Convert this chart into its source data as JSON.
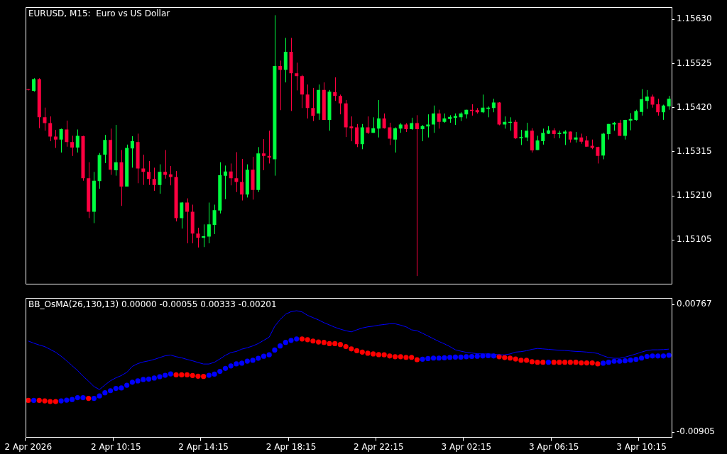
{
  "chart_data": [
    {
      "type": "candlestick",
      "title": "EURUSD, M15:  Euro vs US Dollar",
      "tick_labels": "y",
      "categories": [
        null,
        null,
        null,
        null,
        null,
        null,
        null,
        null,
        null,
        null,
        null,
        null,
        null,
        null,
        null,
        null,
        null,
        null,
        null,
        null,
        null,
        null,
        null,
        null,
        null,
        null,
        null,
        null,
        null,
        null,
        null,
        null,
        null,
        null,
        null,
        null,
        null,
        null,
        null,
        null,
        null,
        null,
        null,
        null,
        null,
        null,
        null,
        null,
        null,
        null,
        null,
        null,
        null,
        null,
        null,
        null,
        null,
        null,
        null,
        null,
        null,
        null,
        null,
        null,
        null,
        null,
        null,
        null,
        null,
        null,
        null,
        null,
        null,
        null,
        null,
        null,
        null,
        null,
        null,
        null,
        null,
        null,
        null,
        null,
        null,
        null,
        null,
        null,
        null,
        null,
        null,
        null,
        null,
        null,
        null,
        null,
        null,
        null,
        null,
        null,
        null,
        null,
        null,
        null,
        null,
        null,
        null,
        null,
        null,
        null,
        null,
        null,
        null,
        null,
        null,
        null,
        null,
        null
      ],
      "ylim": [
        1.15001,
        1.15659
      ],
      "yticks": [
        {
          "value": 1.15105,
          "label": "1.15105"
        },
        {
          "value": 1.1521,
          "label": "1.15210"
        },
        {
          "value": 1.15315,
          "label": "1.15315"
        },
        {
          "value": 1.1542,
          "label": "1.15420"
        },
        {
          "value": 1.15525,
          "label": "1.15525"
        },
        {
          "value": 1.1563,
          "label": "1.15630"
        }
      ],
      "ohlc": [
        [
          1.15463,
          1.15464,
          1.15461,
          1.15462
        ],
        [
          1.1546,
          1.1549,
          1.15458,
          1.15488
        ],
        [
          1.15488,
          1.1549,
          1.15371,
          1.15397
        ],
        [
          1.15397,
          1.1542,
          1.15365,
          1.15383
        ],
        [
          1.15383,
          1.15399,
          1.1534,
          1.15351
        ],
        [
          1.15351,
          1.15367,
          1.15324,
          1.15344
        ],
        [
          1.15344,
          1.1537,
          1.15313,
          1.15369
        ],
        [
          1.15368,
          1.15389,
          1.15327,
          1.15338
        ],
        [
          1.15338,
          1.15353,
          1.15305,
          1.15325
        ],
        [
          1.15325,
          1.15368,
          1.15313,
          1.15353
        ],
        [
          1.15352,
          1.15353,
          1.15246,
          1.15252
        ],
        [
          1.15252,
          1.1529,
          1.15157,
          1.15172
        ],
        [
          1.15172,
          1.15267,
          1.15145,
          1.15246
        ],
        [
          1.15245,
          1.15312,
          1.15227,
          1.15307
        ],
        [
          1.15308,
          1.15355,
          1.15288,
          1.15343
        ],
        [
          1.15343,
          1.1537,
          1.1526,
          1.15272
        ],
        [
          1.15271,
          1.15379,
          1.15258,
          1.1529
        ],
        [
          1.1529,
          1.15319,
          1.15186,
          1.15232
        ],
        [
          1.15232,
          1.15332,
          1.15232,
          1.15324
        ],
        [
          1.15323,
          1.15352,
          1.15277,
          1.1534
        ],
        [
          1.15338,
          1.15358,
          1.1524,
          1.15275
        ],
        [
          1.15275,
          1.15308,
          1.15236,
          1.15267
        ],
        [
          1.15267,
          1.15293,
          1.15236,
          1.1525
        ],
        [
          1.1525,
          1.15277,
          1.15222,
          1.15236
        ],
        [
          1.15236,
          1.15285,
          1.15215,
          1.15267
        ],
        [
          1.15267,
          1.15319,
          1.15251,
          1.1526
        ],
        [
          1.15261,
          1.15281,
          1.15235,
          1.15255
        ],
        [
          1.15255,
          1.15269,
          1.15149,
          1.15157
        ],
        [
          1.15157,
          1.15195,
          1.15132,
          1.15194
        ],
        [
          1.15194,
          1.15204,
          1.15097,
          1.15172
        ],
        [
          1.15172,
          1.15189,
          1.15097,
          1.1512
        ],
        [
          1.1512,
          1.15134,
          1.15087,
          1.1511
        ],
        [
          1.1511,
          1.15142,
          1.15088,
          1.15114
        ],
        [
          1.15113,
          1.15194,
          1.15097,
          1.15142
        ],
        [
          1.15141,
          1.15189,
          1.15119,
          1.15176
        ],
        [
          1.15175,
          1.1529,
          1.15168,
          1.15259
        ],
        [
          1.15258,
          1.15282,
          1.15202,
          1.15268
        ],
        [
          1.15268,
          1.15287,
          1.15235,
          1.15252
        ],
        [
          1.15252,
          1.15314,
          1.15219,
          1.15243
        ],
        [
          1.15243,
          1.15298,
          1.15199,
          1.15213
        ],
        [
          1.15213,
          1.15285,
          1.15206,
          1.15272
        ],
        [
          1.15272,
          1.15303,
          1.15201,
          1.15224
        ],
        [
          1.15224,
          1.15326,
          1.15219,
          1.15311
        ],
        [
          1.15311,
          1.15345,
          1.15271,
          1.15305
        ],
        [
          1.15305,
          1.15365,
          1.15287,
          1.15301
        ],
        [
          1.15297,
          1.1564,
          1.15258,
          1.15519
        ],
        [
          1.15519,
          1.15532,
          1.15414,
          1.1551
        ],
        [
          1.1551,
          1.15586,
          1.1548,
          1.15553
        ],
        [
          1.15553,
          1.15586,
          1.15412,
          1.15502
        ],
        [
          1.15502,
          1.15527,
          1.15461,
          1.15495
        ],
        [
          1.15495,
          1.15498,
          1.15419,
          1.15451
        ],
        [
          1.15451,
          1.15475,
          1.15394,
          1.15419
        ],
        [
          1.15419,
          1.15467,
          1.15388,
          1.154
        ],
        [
          1.15406,
          1.15475,
          1.15391,
          1.15462
        ],
        [
          1.15462,
          1.1548,
          1.15391,
          1.15391
        ],
        [
          1.15391,
          1.15462,
          1.15365,
          1.15458
        ],
        [
          1.15457,
          1.15492,
          1.15436,
          1.15448
        ],
        [
          1.15448,
          1.15451,
          1.15404,
          1.1543
        ],
        [
          1.1543,
          1.15438,
          1.1535,
          1.15373
        ],
        [
          1.15375,
          1.15399,
          1.1534,
          1.15371
        ],
        [
          1.15373,
          1.15381,
          1.15326,
          1.15333
        ],
        [
          1.15333,
          1.15381,
          1.15321,
          1.15373
        ],
        [
          1.15373,
          1.15399,
          1.15357,
          1.1536
        ],
        [
          1.1536,
          1.15397,
          1.1536,
          1.15371
        ],
        [
          1.1537,
          1.15438,
          1.15349,
          1.15394
        ],
        [
          1.15394,
          1.15406,
          1.1537,
          1.15371
        ],
        [
          1.15373,
          1.15384,
          1.15331,
          1.15346
        ],
        [
          1.15344,
          1.15373,
          1.15313,
          1.15371
        ],
        [
          1.1537,
          1.15383,
          1.1536,
          1.1538
        ],
        [
          1.1538,
          1.15383,
          1.15362,
          1.15369
        ],
        [
          1.15369,
          1.15396,
          1.15367,
          1.15383
        ],
        [
          1.15383,
          1.15402,
          1.15019,
          1.15369
        ],
        [
          1.15369,
          1.15379,
          1.1534,
          1.15376
        ],
        [
          1.15375,
          1.15404,
          1.15349,
          1.1538
        ],
        [
          1.1538,
          1.15425,
          1.1536,
          1.15406
        ],
        [
          1.15406,
          1.15415,
          1.1537,
          1.15386
        ],
        [
          1.15386,
          1.15406,
          1.15384,
          1.15394
        ],
        [
          1.15393,
          1.15402,
          1.15384,
          1.15398
        ],
        [
          1.15396,
          1.15406,
          1.15379,
          1.154
        ],
        [
          1.15397,
          1.15409,
          1.15388,
          1.15406
        ],
        [
          1.15404,
          1.15415,
          1.15394,
          1.15415
        ],
        [
          1.15415,
          1.15428,
          1.15401,
          1.15412
        ],
        [
          1.15414,
          1.15419,
          1.15406,
          1.15409
        ],
        [
          1.15409,
          1.15451,
          1.15407,
          1.1542
        ],
        [
          1.15417,
          1.15423,
          1.15397,
          1.1542
        ],
        [
          1.15419,
          1.15441,
          1.15409,
          1.15432
        ],
        [
          1.15432,
          1.15433,
          1.15378,
          1.1538
        ],
        [
          1.1538,
          1.15399,
          1.1537,
          1.15386
        ],
        [
          1.15384,
          1.15397,
          1.15365,
          1.15386
        ],
        [
          1.15386,
          1.15391,
          1.15345,
          1.15347
        ],
        [
          1.15347,
          1.15367,
          1.15331,
          1.1535
        ],
        [
          1.15349,
          1.15384,
          1.1534,
          1.15365
        ],
        [
          1.15365,
          1.15371,
          1.15313,
          1.15318
        ],
        [
          1.15319,
          1.15353,
          1.15319,
          1.15342
        ],
        [
          1.1534,
          1.1537,
          1.15332,
          1.1536
        ],
        [
          1.15358,
          1.15376,
          1.15357,
          1.15366
        ],
        [
          1.15366,
          1.15371,
          1.15347,
          1.15357
        ],
        [
          1.15357,
          1.15365,
          1.15347,
          1.1536
        ],
        [
          1.15358,
          1.15366,
          1.15331,
          1.15363
        ],
        [
          1.15363,
          1.15363,
          1.15337,
          1.15344
        ],
        [
          1.15344,
          1.15362,
          1.15337,
          1.15349
        ],
        [
          1.15349,
          1.15358,
          1.15334,
          1.15339
        ],
        [
          1.15342,
          1.15352,
          1.15327,
          1.15327
        ],
        [
          1.15329,
          1.15344,
          1.15321,
          1.15324
        ],
        [
          1.15326,
          1.15327,
          1.15287,
          1.15305
        ],
        [
          1.15306,
          1.1536,
          1.15297,
          1.15358
        ],
        [
          1.15357,
          1.15381,
          1.15344,
          1.15381
        ],
        [
          1.1538,
          1.15386,
          1.15365,
          1.15384
        ],
        [
          1.15384,
          1.15391,
          1.15353,
          1.15353
        ],
        [
          1.15353,
          1.15391,
          1.15344,
          1.15391
        ],
        [
          1.15389,
          1.15407,
          1.15366,
          1.15393
        ],
        [
          1.15391,
          1.15415,
          1.15389,
          1.15412
        ],
        [
          1.1541,
          1.15464,
          1.15401,
          1.1544
        ],
        [
          1.15436,
          1.15462,
          1.15417,
          1.15446
        ],
        [
          1.15446,
          1.15451,
          1.1542,
          1.15427
        ],
        [
          1.15428,
          1.15441,
          1.15401,
          1.15409
        ],
        [
          1.15409,
          1.15427,
          1.15391,
          1.15425
        ],
        [
          1.15423,
          1.15448,
          1.15415,
          1.15441
        ]
      ],
      "colors": [
        "#ff0040",
        "#00ff40",
        "#ff0040",
        "#ff0040",
        "#ff0040",
        "#ff0040",
        "#00ff40",
        "#ff0040",
        "#ff0040",
        "#00ff40",
        "#ff0040",
        "#ff0040",
        "#00ff40",
        "#00ff40",
        "#00ff40",
        "#ff0040",
        "#00ff40",
        "#ff0040",
        "#00ff40",
        "#00ff40",
        "#ff0040",
        "#ff0040",
        "#ff0040",
        "#ff0040",
        "#00ff40",
        "#ff0040",
        "#ff0040",
        "#ff0040",
        "#00ff40",
        "#ff0040",
        "#ff0040",
        "#ff0040",
        "#00ff40",
        "#00ff40",
        "#00ff40",
        "#00ff40",
        "#00ff40",
        "#ff0040",
        "#ff0040",
        "#ff0040",
        "#00ff40",
        "#ff0040",
        "#00ff40",
        "#ff0040",
        "#ff0040",
        "#00ff40",
        "#ff0040",
        "#00ff40",
        "#ff0040",
        "#ff0040",
        "#ff0040",
        "#ff0040",
        "#ff0040",
        "#00ff40",
        "#ff0040",
        "#00ff40",
        "#ff0040",
        "#ff0040",
        "#ff0040",
        "#ff0040",
        "#ff0040",
        "#00ff40",
        "#ff0040",
        "#00ff40",
        "#00ff40",
        "#ff0040",
        "#ff0040",
        "#00ff40",
        "#00ff40",
        "#ff0040",
        "#00ff40",
        "#ff0040",
        "#00ff40",
        "#00ff40",
        "#00ff40",
        "#ff0040",
        "#00ff40",
        "#00ff40",
        "#00ff40",
        "#00ff40",
        "#00ff40",
        "#ff0040",
        "#ff0040",
        "#00ff40",
        "#00ff40",
        "#00ff40",
        "#ff0040",
        "#00ff40",
        "#00ff40",
        "#ff0040",
        "#00ff40",
        "#00ff40",
        "#ff0040",
        "#00ff40",
        "#00ff40",
        "#00ff40",
        "#ff0040",
        "#00ff40",
        "#00ff40",
        "#ff0040",
        "#00ff40",
        "#ff0040",
        "#ff0040",
        "#ff0040",
        "#ff0040",
        "#00ff40",
        "#00ff40",
        "#00ff40",
        "#ff0040",
        "#00ff40",
        "#00ff40",
        "#00ff40",
        "#00ff40",
        "#00ff40",
        "#ff0040",
        "#ff0040",
        "#00ff40",
        "#00ff40"
      ]
    },
    {
      "type": "line",
      "title": "BB_OsMA(26,130,13) 0.00000 -0.00055 0.00333 -0.00201",
      "categories": [
        "2 Apr 2026",
        null,
        null,
        null,
        null,
        null,
        null,
        null,
        null,
        null,
        null,
        null,
        null,
        null,
        null,
        null,
        "2 Apr 10:15",
        null,
        null,
        null,
        null,
        null,
        null,
        null,
        null,
        null,
        null,
        null,
        null,
        null,
        null,
        null,
        "2 Apr 14:15",
        null,
        null,
        null,
        null,
        null,
        null,
        null,
        null,
        null,
        null,
        null,
        null,
        null,
        null,
        null,
        "2 Apr 18:15",
        null,
        null,
        null,
        null,
        null,
        null,
        null,
        null,
        null,
        null,
        null,
        null,
        null,
        null,
        null,
        "2 Apr 22:15",
        null,
        null,
        null,
        null,
        null,
        null,
        null,
        null,
        null,
        null,
        null,
        null,
        null,
        null,
        null,
        "3 Apr 02:15",
        null,
        null,
        null,
        null,
        null,
        null,
        null,
        null,
        null,
        null,
        null,
        null,
        null,
        null,
        null,
        "3 Apr 06:15",
        null,
        null,
        null,
        null,
        null,
        null,
        null,
        null,
        null,
        null,
        null,
        null,
        null,
        null,
        null,
        "3 Apr 10:15",
        null,
        null,
        null,
        null,
        null
      ],
      "ylim": [
        -0.00975,
        0.00851
      ],
      "yticks": [
        -0.00905,
        0.00767
      ],
      "series": [
        {
          "color": "#0000ff",
          "values": [
            0.00288,
            0.0026,
            0.00236,
            0.00215,
            0.00179,
            0.0014,
            0.00089,
            0.00029,
            -0.00035,
            -0.00098,
            -0.00173,
            -0.00237,
            -0.00309,
            -0.00348,
            -0.00288,
            -0.00233,
            -0.00194,
            -0.00164,
            -0.00122,
            -0.00044,
            -8e-05,
            0.00014,
            0.00029,
            0.00047,
            0.00071,
            0.00095,
            0.00104,
            0.00083,
            0.00068,
            0.00047,
            0.00029,
            7e-05,
            -0.00013,
            -0.00013,
            0.0001,
            0.00053,
            0.00101,
            0.00137,
            0.00152,
            0.00182,
            0.002,
            0.00224,
            0.00255,
            0.00297,
            0.00339,
            0.0048,
            0.00571,
            0.0064,
            0.00673,
            0.00685,
            0.0067,
            0.00625,
            0.00595,
            0.00565,
            0.00529,
            0.00499,
            0.00468,
            0.00444,
            0.00423,
            0.00408,
            0.00435,
            0.00459,
            0.00474,
            0.00483,
            0.00496,
            0.00505,
            0.00514,
            0.00514,
            0.00496,
            0.00474,
            0.00435,
            0.00423,
            0.0039,
            0.00354,
            0.00318,
            0.00282,
            0.00251,
            0.00215,
            0.00173,
            0.00155,
            0.0014,
            0.00131,
            0.00122,
            0.00119,
            0.00119,
            0.00116,
            0.00107,
            0.00107,
            0.00119,
            0.00143,
            0.00149,
            0.00161,
            0.00179,
            0.00191,
            0.00185,
            0.00179,
            0.00173,
            0.00167,
            0.00164,
            0.00158,
            0.00152,
            0.00149,
            0.00143,
            0.00137,
            0.00125,
            0.00095,
            0.00071,
            0.00062,
            0.00062,
            0.00077,
            0.00098,
            0.00119,
            0.00143,
            0.00164,
            0.00173,
            0.00173,
            0.00176,
            0.00182
          ]
        },
        {
          "type": "scatter",
          "marker": "circle",
          "values": [
            -0.0049,
            -0.0049,
            -0.0049,
            -0.00496,
            -0.00505,
            -0.00505,
            -0.00496,
            -0.00487,
            -0.00478,
            -0.00454,
            -0.00454,
            -0.00463,
            -0.00463,
            -0.00432,
            -0.0039,
            -0.00363,
            -0.00333,
            -0.00327,
            -0.00291,
            -0.00252,
            -0.00234,
            -0.00216,
            -0.0021,
            -0.00197,
            -0.00179,
            -0.00161,
            -0.00143,
            -0.00155,
            -0.00155,
            -0.00155,
            -0.00164,
            -0.00173,
            -0.00176,
            -0.00161,
            -0.00146,
            -0.0011,
            -0.00071,
            -0.00038,
            -0.00011,
            -2e-05,
            0.00025,
            0.00035,
            0.00062,
            0.00089,
            0.00107,
            0.0017,
            0.00224,
            0.0027,
            0.00297,
            0.00315,
            0.00315,
            0.00306,
            0.00288,
            0.00276,
            0.0027,
            0.00254,
            0.00254,
            0.00242,
            0.00215,
            0.00185,
            0.00161,
            0.00143,
            0.00128,
            0.00119,
            0.0011,
            0.00107,
            0.00092,
            0.00083,
            0.00083,
            0.00074,
            0.00074,
            0.00044,
            0.0005,
            0.00059,
            0.00065,
            0.00065,
            0.00068,
            0.00074,
            0.00077,
            0.00077,
            0.00083,
            0.00086,
            0.00089,
            0.00092,
            0.00095,
            0.00092,
            0.00083,
            0.00071,
            0.00065,
            0.00053,
            0.00035,
            0.00035,
            0.00017,
            0.0001,
            0.0001,
            0.0001,
            0.0001,
            0.0001,
            0.0001,
            0.0001,
            0.0001,
            1e-05,
            1e-05,
            1e-05,
            -0.00011,
            -2e-05,
            0.0001,
            0.00023,
            0.00023,
            0.00029,
            0.00038,
            0.00047,
            0.00065,
            0.00086,
            0.00092,
            0.00092,
            0.00092,
            0.00101
          ],
          "colors": [
            "#ff0000",
            "#0000ff",
            "#ff0000",
            "#ff0000",
            "#ff0000",
            "#ff0000",
            "#0000ff",
            "#0000ff",
            "#0000ff",
            "#0000ff",
            "#0000ff",
            "#ff0000",
            "#0000ff",
            "#0000ff",
            "#0000ff",
            "#0000ff",
            "#0000ff",
            "#0000ff",
            "#0000ff",
            "#0000ff",
            "#0000ff",
            "#0000ff",
            "#0000ff",
            "#0000ff",
            "#0000ff",
            "#0000ff",
            "#0000ff",
            "#ff0000",
            "#ff0000",
            "#ff0000",
            "#ff0000",
            "#ff0000",
            "#ff0000",
            "#0000ff",
            "#0000ff",
            "#0000ff",
            "#0000ff",
            "#0000ff",
            "#0000ff",
            "#0000ff",
            "#0000ff",
            "#0000ff",
            "#0000ff",
            "#0000ff",
            "#0000ff",
            "#0000ff",
            "#0000ff",
            "#0000ff",
            "#0000ff",
            "#0000ff",
            "#ff0000",
            "#ff0000",
            "#ff0000",
            "#ff0000",
            "#ff0000",
            "#ff0000",
            "#ff0000",
            "#ff0000",
            "#ff0000",
            "#ff0000",
            "#ff0000",
            "#ff0000",
            "#ff0000",
            "#ff0000",
            "#ff0000",
            "#ff0000",
            "#ff0000",
            "#ff0000",
            "#ff0000",
            "#ff0000",
            "#ff0000",
            "#ff0000",
            "#0000ff",
            "#0000ff",
            "#0000ff",
            "#0000ff",
            "#0000ff",
            "#0000ff",
            "#0000ff",
            "#0000ff",
            "#0000ff",
            "#0000ff",
            "#0000ff",
            "#0000ff",
            "#0000ff",
            "#0000ff",
            "#ff0000",
            "#ff0000",
            "#ff0000",
            "#ff0000",
            "#ff0000",
            "#ff0000",
            "#ff0000",
            "#ff0000",
            "#ff0000",
            "#0000ff",
            "#ff0000",
            "#ff0000",
            "#ff0000",
            "#ff0000",
            "#ff0000",
            "#ff0000",
            "#ff0000",
            "#ff0000",
            "#ff0000",
            "#0000ff",
            "#0000ff",
            "#0000ff",
            "#0000ff",
            "#0000ff",
            "#0000ff",
            "#0000ff",
            "#0000ff",
            "#0000ff",
            "#0000ff",
            "#0000ff",
            "#0000ff",
            "#0000ff"
          ]
        }
      ]
    }
  ]
}
